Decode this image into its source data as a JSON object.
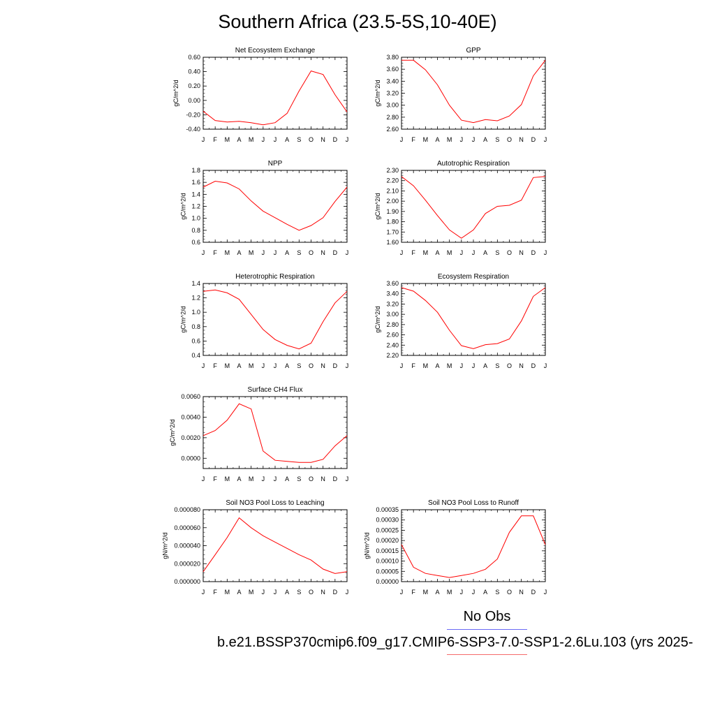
{
  "title": "Southern Africa (23.5-5S,10-40E)",
  "legend": {
    "obs_label": "No Obs",
    "obs_color": "#6b6bf5",
    "case_label": "b.e21.BSSP370cmip6.f09_g17.CMIP6-SSP3-7.0-SSP1-2.6Lu.103 (yrs 2025-",
    "case_color": "#f56b6b"
  },
  "chart_data": [
    {
      "type": "line",
      "title": "Net Ecosystem Exchange",
      "ylabel": "gC/m^2/d",
      "categories": [
        "J",
        "F",
        "M",
        "A",
        "M",
        "J",
        "J",
        "A",
        "S",
        "O",
        "N",
        "D",
        "J"
      ],
      "yticks": [
        "0.60",
        "0.40",
        "0.20",
        "0.00",
        "-0.20",
        "-0.40"
      ],
      "ylim": [
        -0.4,
        0.6
      ],
      "line_color": "#ff0000",
      "values": [
        -0.15,
        -0.28,
        -0.3,
        -0.29,
        -0.31,
        -0.34,
        -0.31,
        -0.18,
        0.13,
        0.41,
        0.36,
        0.08,
        -0.16
      ]
    },
    {
      "type": "line",
      "title": "GPP",
      "ylabel": "gC/m^2/d",
      "categories": [
        "J",
        "F",
        "M",
        "A",
        "M",
        "J",
        "J",
        "A",
        "S",
        "O",
        "N",
        "D",
        "J"
      ],
      "yticks": [
        "3.80",
        "3.60",
        "3.40",
        "3.20",
        "3.00",
        "2.80",
        "2.60"
      ],
      "ylim": [
        2.6,
        3.8
      ],
      "line_color": "#ff0000",
      "values": [
        3.75,
        3.75,
        3.59,
        3.34,
        3.0,
        2.75,
        2.71,
        2.76,
        2.74,
        2.82,
        3.01,
        3.49,
        3.75
      ]
    },
    {
      "type": "line",
      "title": "NPP",
      "ylabel": "gC/m^2/d",
      "categories": [
        "J",
        "F",
        "M",
        "A",
        "M",
        "J",
        "J",
        "A",
        "S",
        "O",
        "N",
        "D",
        "J"
      ],
      "yticks": [
        "1.8",
        "1.6",
        "1.4",
        "1.2",
        "1.0",
        "0.8",
        "0.6"
      ],
      "ylim": [
        0.6,
        1.8
      ],
      "line_color": "#ff0000",
      "values": [
        1.52,
        1.62,
        1.59,
        1.49,
        1.29,
        1.12,
        1.01,
        0.9,
        0.8,
        0.88,
        1.01,
        1.28,
        1.52
      ]
    },
    {
      "type": "line",
      "title": "Autotrophic Respiration",
      "ylabel": "gC/m^2/d",
      "categories": [
        "J",
        "F",
        "M",
        "A",
        "M",
        "J",
        "J",
        "A",
        "S",
        "O",
        "N",
        "D",
        "J"
      ],
      "yticks": [
        "2.30",
        "2.20",
        "2.10",
        "2.00",
        "1.90",
        "1.80",
        "1.70",
        "1.60"
      ],
      "ylim": [
        1.6,
        2.3
      ],
      "line_color": "#ff0000",
      "values": [
        2.24,
        2.15,
        2.01,
        1.86,
        1.72,
        1.64,
        1.72,
        1.88,
        1.95,
        1.96,
        2.01,
        2.23,
        2.24
      ]
    },
    {
      "type": "line",
      "title": "Heterotrophic Respiration",
      "ylabel": "gC/m^2/d",
      "categories": [
        "J",
        "F",
        "M",
        "A",
        "M",
        "J",
        "J",
        "A",
        "S",
        "O",
        "N",
        "D",
        "J"
      ],
      "yticks": [
        "1.4",
        "1.2",
        "1.0",
        "0.8",
        "0.6",
        "0.4"
      ],
      "ylim": [
        0.4,
        1.4
      ],
      "line_color": "#ff0000",
      "values": [
        1.29,
        1.31,
        1.27,
        1.18,
        0.97,
        0.76,
        0.62,
        0.54,
        0.49,
        0.57,
        0.87,
        1.13,
        1.29
      ]
    },
    {
      "type": "line",
      "title": "Ecosystem Respiration",
      "ylabel": "gC/m^2/d",
      "categories": [
        "J",
        "F",
        "M",
        "A",
        "M",
        "J",
        "J",
        "A",
        "S",
        "O",
        "N",
        "D",
        "J"
      ],
      "yticks": [
        "3.60",
        "3.40",
        "3.20",
        "3.00",
        "2.80",
        "2.60",
        "2.40",
        "2.20"
      ],
      "ylim": [
        2.2,
        3.6
      ],
      "line_color": "#ff0000",
      "values": [
        3.52,
        3.45,
        3.27,
        3.04,
        2.69,
        2.39,
        2.33,
        2.41,
        2.43,
        2.52,
        2.87,
        3.35,
        3.52
      ]
    },
    {
      "type": "line",
      "title": "Surface CH4 Flux",
      "ylabel": "gC/m^2/d",
      "categories": [
        "J",
        "F",
        "M",
        "A",
        "M",
        "J",
        "J",
        "A",
        "S",
        "O",
        "N",
        "D",
        "J"
      ],
      "yticks": [
        "0.0060",
        "0.0040",
        "0.0020",
        "0.0000"
      ],
      "ylim": [
        -0.001,
        0.006
      ],
      "line_color": "#ff0000",
      "values": [
        0.0022,
        0.0027,
        0.0037,
        0.0053,
        0.0048,
        0.0007,
        -0.0002,
        -0.0003,
        -0.0004,
        -0.0004,
        -0.0001,
        0.0012,
        0.0022
      ]
    },
    {
      "type": "line",
      "title": "Soil NO3 Pool Loss to Leaching",
      "ylabel": "gN/m^2/d",
      "categories": [
        "J",
        "F",
        "M",
        "A",
        "M",
        "J",
        "J",
        "A",
        "S",
        "O",
        "N",
        "D",
        "J"
      ],
      "yticks": [
        "0.000080",
        "0.000060",
        "0.000040",
        "0.000020",
        "0.000000"
      ],
      "ylim": [
        0.0,
        8e-05
      ],
      "line_color": "#ff0000",
      "values": [
        1.1e-05,
        3e-05,
        4.9e-05,
        7.1e-05,
        6e-05,
        5.1e-05,
        4.4e-05,
        3.7e-05,
        3e-05,
        2.4e-05,
        1.4e-05,
        9e-06,
        1.1e-05
      ]
    },
    {
      "type": "line",
      "title": "Soil NO3 Pool Loss to Runoff",
      "ylabel": "gN/m^2/d",
      "categories": [
        "J",
        "F",
        "M",
        "A",
        "M",
        "J",
        "J",
        "A",
        "S",
        "O",
        "N",
        "D",
        "J"
      ],
      "yticks": [
        "0.00035",
        "0.00030",
        "0.00025",
        "0.00020",
        "0.00015",
        "0.00010",
        "0.00005",
        "0.00000"
      ],
      "ylim": [
        0.0,
        0.00035
      ],
      "line_color": "#ff0000",
      "values": [
        0.00018,
        7e-05,
        4e-05,
        3e-05,
        2e-05,
        3e-05,
        4e-05,
        6e-05,
        0.00011,
        0.00024,
        0.00032,
        0.00032,
        0.00018
      ]
    }
  ]
}
